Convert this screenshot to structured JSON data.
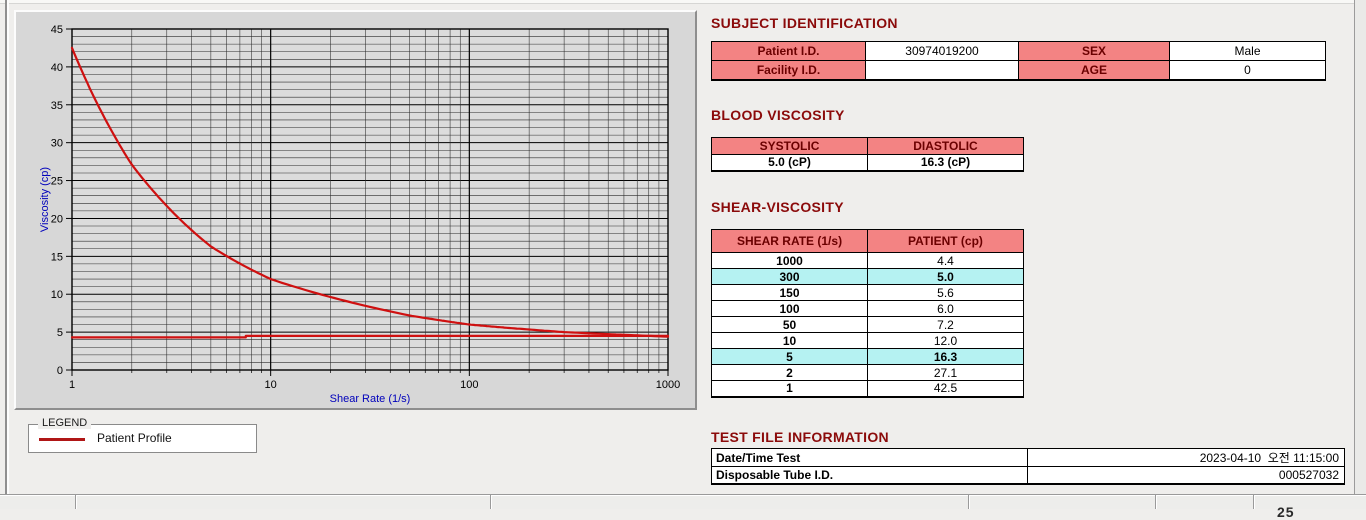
{
  "chart_data": {
    "type": "line",
    "x_scale": "log",
    "xlabel": "Shear Rate (1/s)",
    "ylabel": "Viscosity (cp)",
    "xlim": [
      1,
      1000
    ],
    "ylim": [
      0,
      45
    ],
    "x_ticks": [
      1,
      10,
      100,
      1000
    ],
    "y_ticks": [
      0,
      5,
      10,
      15,
      20,
      25,
      30,
      35,
      40,
      45
    ],
    "grid": "major-and-minor",
    "series": [
      {
        "name": "Patient Profile",
        "color": "#cf1010",
        "smooth": true,
        "points": [
          [
            1,
            42.5
          ],
          [
            2,
            27.1
          ],
          [
            5,
            16.3
          ],
          [
            10,
            12.0
          ],
          [
            50,
            7.2
          ],
          [
            100,
            6.0
          ],
          [
            150,
            5.6
          ],
          [
            300,
            5.0
          ],
          [
            1000,
            4.4
          ]
        ]
      },
      {
        "name": "baseline",
        "color": "#cf1010",
        "smooth": false,
        "points": [
          [
            1,
            4.3
          ],
          [
            7.5,
            4.3
          ],
          [
            7.5,
            4.5
          ],
          [
            1000,
            4.5
          ]
        ]
      }
    ]
  },
  "legend": {
    "title": "LEGEND",
    "items": [
      {
        "label": "Patient Profile",
        "color": "#b01616"
      }
    ]
  },
  "sections": {
    "subject": {
      "title": "SUBJECT IDENTIFICATION",
      "rows": [
        {
          "label": "Patient I.D.",
          "value": "30974019200",
          "label2": "SEX",
          "value2": "Male"
        },
        {
          "label": "Facility I.D.",
          "value": "",
          "label2": "AGE",
          "value2": "0"
        }
      ]
    },
    "blood": {
      "title": "BLOOD VISCOSITY",
      "headers": [
        "SYSTOLIC",
        "DIASTOLIC"
      ],
      "values": [
        "5.0 (cP)",
        "16.3 (cP)"
      ]
    },
    "shear": {
      "title": "SHEAR-VISCOSITY",
      "headers": [
        "SHEAR RATE (1/s)",
        "PATIENT (cp)"
      ],
      "rows": [
        {
          "rate": "1000",
          "value": "4.4",
          "highlight": false
        },
        {
          "rate": "300",
          "value": "5.0",
          "highlight": true
        },
        {
          "rate": "150",
          "value": "5.6",
          "highlight": false
        },
        {
          "rate": "100",
          "value": "6.0",
          "highlight": false
        },
        {
          "rate": "50",
          "value": "7.2",
          "highlight": false
        },
        {
          "rate": "10",
          "value": "12.0",
          "highlight": false
        },
        {
          "rate": "5",
          "value": "16.3",
          "highlight": true
        },
        {
          "rate": "2",
          "value": "27.1",
          "highlight": false
        },
        {
          "rate": "1",
          "value": "42.5",
          "highlight": false
        }
      ]
    },
    "testfile": {
      "title": "TEST FILE INFORMATION",
      "rows": [
        {
          "label": "Date/Time Test",
          "value": "2023-04-10  오전 11:15:00"
        },
        {
          "label": "Disposable Tube I.D.",
          "value": "000527032"
        }
      ]
    }
  },
  "chrome": {
    "status_fragment": "25"
  }
}
